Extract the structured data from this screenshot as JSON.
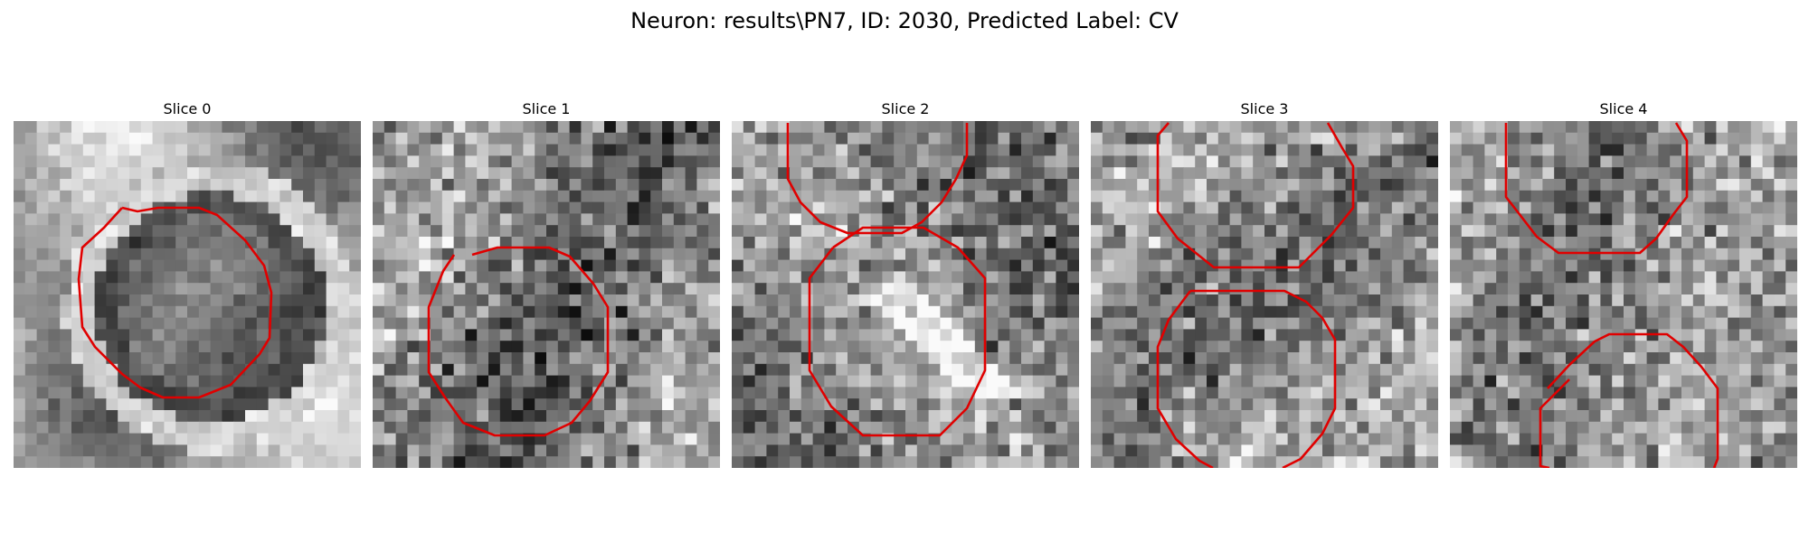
{
  "figure": {
    "title": "Neuron: results\\PN7, ID: 2030, Predicted Label: CV"
  },
  "slices": [
    {
      "label": "Slice 0"
    },
    {
      "label": "Slice 1"
    },
    {
      "label": "Slice 2"
    },
    {
      "label": "Slice 3"
    },
    {
      "label": "Slice 4"
    }
  ],
  "colors": {
    "contour": "#e00000",
    "image_colormap": "gray"
  }
}
